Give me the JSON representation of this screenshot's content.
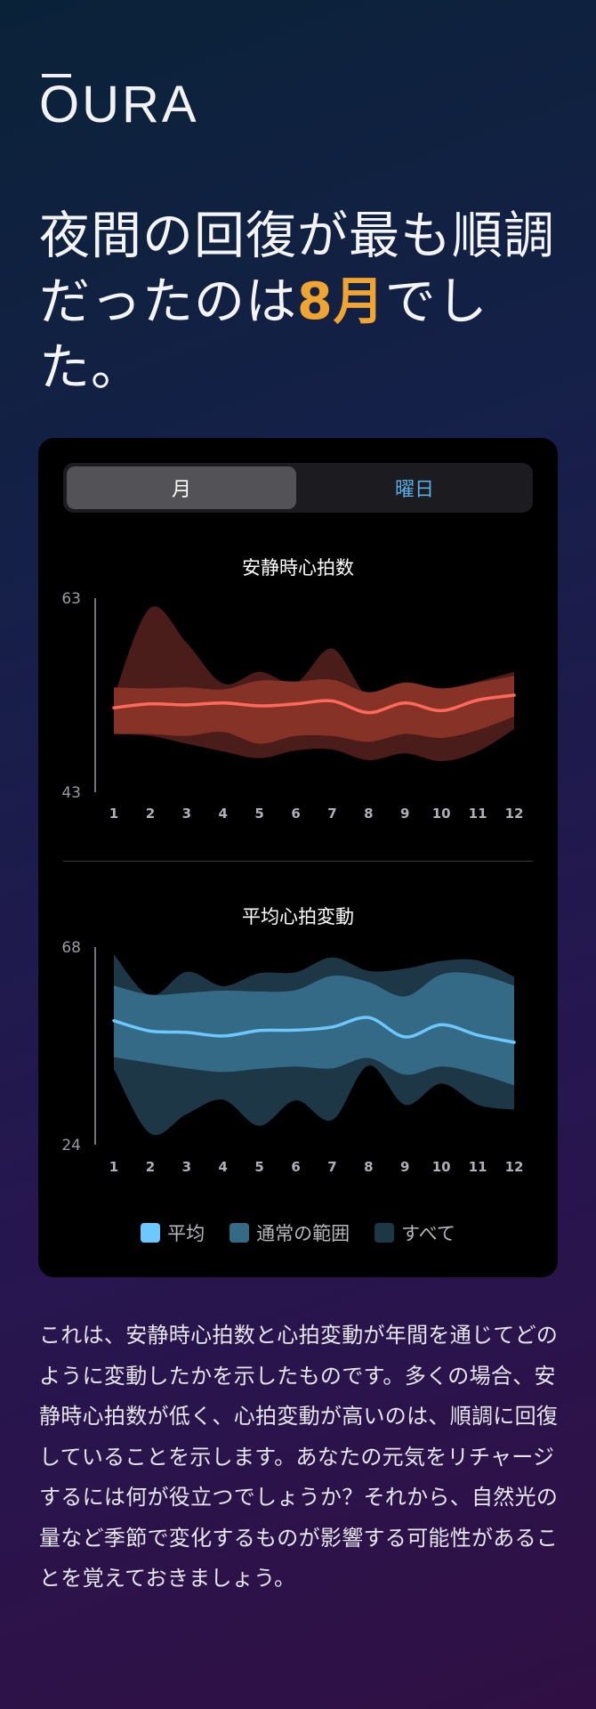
{
  "brand": {
    "logo_text": "OURA"
  },
  "headline": {
    "prefix": "夜間の回復が最も順調だったのは",
    "highlight": "8月",
    "suffix": "でした。"
  },
  "toggle": {
    "month_label": "月",
    "weekday_label": "曜日"
  },
  "chart_data": [
    {
      "type": "area",
      "title": "安静時心拍数",
      "x": [
        1,
        2,
        3,
        4,
        5,
        6,
        7,
        8,
        9,
        10,
        11,
        12
      ],
      "tick_labels": [
        "1",
        "2",
        "3",
        "4",
        "5",
        "6",
        "7",
        "8",
        "9",
        "10",
        "11",
        "12"
      ],
      "ylim": [
        43,
        63
      ],
      "ytick_labels": [
        "63",
        "43"
      ],
      "series": [
        {
          "name": "平均",
          "values": [
            51.7,
            52.1,
            52.0,
            52.2,
            51.9,
            52.1,
            52.4,
            51.2,
            52.2,
            51.4,
            52.5,
            53.0
          ]
        },
        {
          "name": "通常の範囲",
          "upper": [
            53.8,
            53.7,
            53.8,
            53.6,
            54.5,
            54.4,
            54.6,
            53.3,
            54.3,
            53.7,
            54.3,
            55.0
          ],
          "lower": [
            49.0,
            49.0,
            48.8,
            49.2,
            48.0,
            48.8,
            48.8,
            48.2,
            49.0,
            48.6,
            49.4,
            50.8
          ]
        },
        {
          "name": "すべて",
          "upper": [
            52.9,
            62.0,
            58.4,
            54.2,
            55.4,
            54.3,
            57.8,
            52.8,
            53.9,
            53.4,
            54.4,
            55.4
          ],
          "lower": [
            49.0,
            48.8,
            48.0,
            47.2,
            46.5,
            47.3,
            47.4,
            46.3,
            47.0,
            46.2,
            47.2,
            49.5
          ]
        }
      ]
    },
    {
      "type": "area",
      "title": "平均心拍変動",
      "x": [
        1,
        2,
        3,
        4,
        5,
        6,
        7,
        8,
        9,
        10,
        11,
        12
      ],
      "tick_labels": [
        "1",
        "2",
        "3",
        "4",
        "5",
        "6",
        "7",
        "8",
        "9",
        "10",
        "11",
        "12"
      ],
      "ylim": [
        24,
        68
      ],
      "ytick_labels": [
        "68",
        "24"
      ],
      "series": [
        {
          "name": "平均",
          "values": [
            51.6,
            49.3,
            49.0,
            48.2,
            49.4,
            49.5,
            50.2,
            52.3,
            48.0,
            50.7,
            48.4,
            46.8
          ]
        },
        {
          "name": "通常の範囲",
          "upper": [
            59.4,
            57.4,
            57.8,
            58.3,
            58.1,
            58.4,
            61.6,
            60.2,
            57.0,
            61.9,
            61.9,
            59.4
          ],
          "lower": [
            43.5,
            42.2,
            41.0,
            40.2,
            40.9,
            41.4,
            41.0,
            43.3,
            39.6,
            41.4,
            39.8,
            37.2
          ]
        },
        {
          "name": "すべて",
          "upper": [
            66.4,
            57.2,
            62.5,
            59.3,
            62.2,
            62.4,
            65.7,
            62.7,
            63.2,
            64.9,
            65.0,
            61.4
          ],
          "lower": [
            40.8,
            26.5,
            30.8,
            34.0,
            28.2,
            33.9,
            29.5,
            41.6,
            32.9,
            37.6,
            32.9,
            31.8
          ]
        }
      ]
    }
  ],
  "legend": {
    "avg": "平均",
    "normal": "通常の範囲",
    "all": "すべて"
  },
  "colors": {
    "hr_avg": "#ff6a5c",
    "hr_normal": "#873227",
    "hr_all": "#4a1c1a",
    "hrv_avg": "#6cc8ff",
    "hrv_normal": "#356a87",
    "hrv_all": "#1e3746",
    "accent": "#f0a432"
  },
  "body": {
    "text": "これは、安静時心拍数と心拍変動が年間を通じてどのように変動したかを示したものです。多くの場合、安静時心拍数が低く、心拍変動が高いのは、順調に回復していることを示します。あなたの元気をリチャージするには何が役立つでしょうか？それから、自然光の量など季節で変化するものが影響する可能性があることを覚えておきましょう。"
  }
}
